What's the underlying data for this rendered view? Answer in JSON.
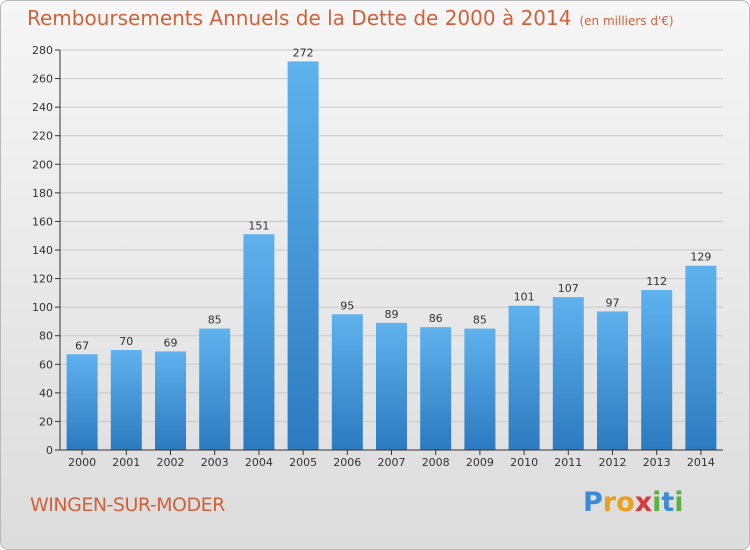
{
  "title": "Remboursements Annuels de la Dette de 2000 à 2014",
  "subtitle": "(en milliers d'€)",
  "city": "WINGEN-SUR-MODER",
  "logo": {
    "text": "Proxiti",
    "letters": [
      "P",
      "r",
      "o",
      "x",
      "i",
      "t",
      "i"
    ],
    "colors": [
      "#3a8ad6",
      "#e8a020",
      "#e8a020",
      "#d63a3a",
      "#5ab040",
      "#3a8ad6",
      "#5ab040"
    ]
  },
  "colors": {
    "bar_top": "#5fb2ee",
    "bar_bottom": "#2c7ac0",
    "title": "#d0623a",
    "grid": "#c8c8c8",
    "axis": "#333333"
  },
  "chart_data": {
    "type": "bar",
    "categories": [
      "2000",
      "2001",
      "2002",
      "2003",
      "2004",
      "2005",
      "2006",
      "2007",
      "2008",
      "2009",
      "2010",
      "2011",
      "2012",
      "2013",
      "2014"
    ],
    "values": [
      67,
      70,
      69,
      85,
      151,
      272,
      95,
      89,
      86,
      85,
      101,
      107,
      97,
      112,
      129
    ],
    "data_labels": [
      "67",
      "70",
      "69",
      "85",
      "151",
      "272",
      "95",
      "89",
      "86",
      "85",
      "101",
      "107",
      "97",
      "112",
      "129"
    ],
    "title": "Remboursements Annuels de la Dette de 2000 à 2014",
    "xlabel": "",
    "ylabel": "",
    "ylim": [
      0,
      280
    ],
    "yticks": [
      0,
      20,
      40,
      60,
      80,
      100,
      120,
      140,
      160,
      180,
      200,
      220,
      240,
      260,
      280
    ],
    "ytick_labels": [
      "0",
      "20",
      "40",
      "60",
      "80",
      "100",
      "120",
      "140",
      "160",
      "180",
      "200",
      "220",
      "240",
      "260",
      "280"
    ],
    "grid": true,
    "legend": "none"
  }
}
